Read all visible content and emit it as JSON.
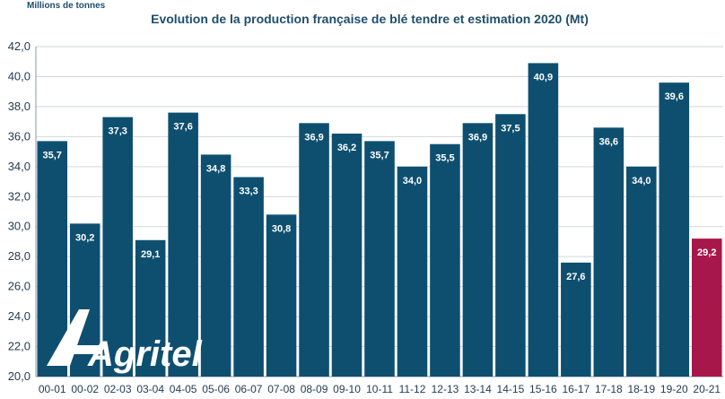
{
  "chart_data": {
    "type": "bar",
    "title": "Evolution de la production française de blé tendre et estimation 2020 (Mt)",
    "ylabel": "Millions de tonnes",
    "xlabel": "",
    "ylim": [
      20,
      42
    ],
    "yticks": [
      "20,0",
      "22,0",
      "24,0",
      "26,0",
      "28,0",
      "30,0",
      "32,0",
      "34,0",
      "36,0",
      "38,0",
      "40,0",
      "42,0"
    ],
    "grid": true,
    "legend": "none",
    "categories": [
      "00-01",
      "00-02",
      "02-03",
      "03-04",
      "04-05",
      "05-06",
      "06-07",
      "07-08",
      "08-09",
      "09-10",
      "10-11",
      "11-12",
      "12-13",
      "13-14",
      "14-15",
      "15-16",
      "16-17",
      "17-18",
      "18-19",
      "19-20",
      "20-21"
    ],
    "values": [
      35.7,
      30.2,
      37.3,
      29.1,
      37.6,
      34.8,
      33.3,
      30.8,
      36.9,
      36.2,
      35.7,
      34.0,
      35.5,
      36.9,
      37.5,
      40.9,
      27.6,
      36.6,
      34.0,
      39.6,
      29.2
    ],
    "value_labels": [
      "35,7",
      "30,2",
      "37,3",
      "29,1",
      "37,6",
      "34,8",
      "33,3",
      "30,8",
      "36,9",
      "36,2",
      "35,7",
      "34,0",
      "35,5",
      "36,9",
      "37,5",
      "40,9",
      "27,6",
      "36,6",
      "34,0",
      "39,6",
      "29,2"
    ],
    "colors": {
      "bar": "#0e4f70",
      "estimate": "#a8174a"
    },
    "estimate_index": 20
  },
  "logo": {
    "text": "Agritel",
    "icon": "agritel-logo-icon"
  }
}
